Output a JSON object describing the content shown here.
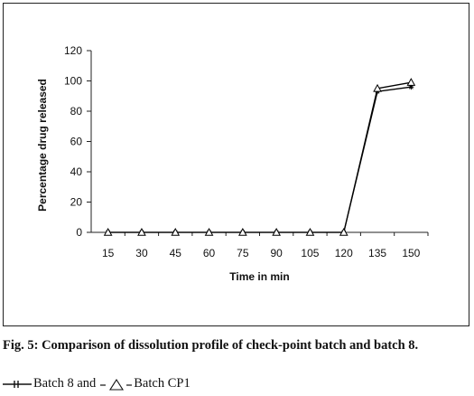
{
  "caption": {
    "title": "Fig. 5: Comparison of dissolution profile of check-point batch and batch 8.",
    "legend_text": {
      "series1": "Batch 8 and",
      "series2": "Batch CP1"
    }
  },
  "chart_data": {
    "type": "line",
    "title": "",
    "xlabel": "Time in min",
    "ylabel": "Percentage drug released",
    "x": [
      15,
      30,
      45,
      60,
      75,
      90,
      105,
      120,
      135,
      150
    ],
    "ylim": [
      0,
      120
    ],
    "yticks": [
      0,
      20,
      40,
      60,
      80,
      100,
      120
    ],
    "grid": false,
    "legend": "none",
    "series": [
      {
        "name": "Batch 8",
        "marker": "star",
        "values": [
          0,
          0,
          0,
          0,
          0,
          0,
          0,
          0,
          93,
          96
        ]
      },
      {
        "name": "Batch CP1",
        "marker": "triangle",
        "values": [
          0,
          0,
          0,
          0,
          0,
          0,
          0,
          0,
          95,
          99
        ]
      }
    ],
    "line_color": "#000000"
  }
}
